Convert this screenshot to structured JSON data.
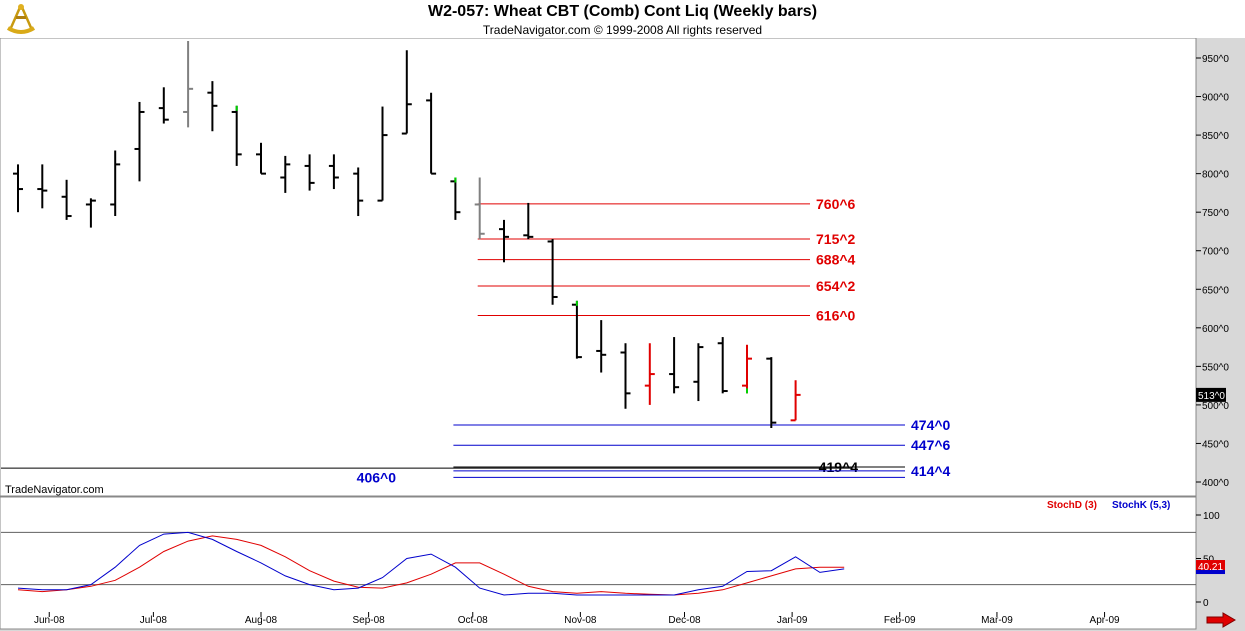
{
  "header": {
    "title": "W2-057:  Wheat CBT (Comb) Cont Liq  (Weekly bars)",
    "copyright": "TradeNavigator.com © 1999-2008 All rights reserved",
    "watermark": "TradeNavigator.com"
  },
  "chart_data": [
    {
      "type": "ohlc",
      "panel": "price",
      "y_ticks": [
        "950^0",
        "900^0",
        "850^0",
        "800^0",
        "750^0",
        "700^0",
        "650^0",
        "600^0",
        "550^0",
        "500^0",
        "450^0",
        "400^0"
      ],
      "y_tick_values": [
        950,
        900,
        850,
        800,
        750,
        700,
        650,
        600,
        550,
        500,
        450,
        400
      ],
      "ylim": [
        385,
        975
      ],
      "last_price_label": "513^0",
      "last_price": 513,
      "colors": {
        "up_down": "#000000",
        "early": "#000000",
        "gray": "#808080",
        "red": "#e00000",
        "green": "#00d000"
      },
      "bars": [
        {
          "date": "2008-05-23",
          "open": 800,
          "high": 812,
          "low": 750,
          "close": 780,
          "color": "black"
        },
        {
          "date": "2008-05-30",
          "open": 780,
          "high": 812,
          "low": 755,
          "close": 778,
          "color": "black"
        },
        {
          "date": "2008-06-06",
          "open": 770,
          "high": 792,
          "low": 740,
          "close": 745,
          "color": "black"
        },
        {
          "date": "2008-06-13",
          "open": 760,
          "high": 768,
          "low": 730,
          "close": 765,
          "color": "black"
        },
        {
          "date": "2008-06-20",
          "open": 760,
          "high": 830,
          "low": 745,
          "close": 812,
          "color": "black"
        },
        {
          "date": "2008-06-27",
          "open": 832,
          "high": 893,
          "low": 790,
          "close": 880,
          "color": "black"
        },
        {
          "date": "2008-07-04",
          "open": 885,
          "high": 912,
          "low": 865,
          "close": 870,
          "color": "black"
        },
        {
          "date": "2008-07-11",
          "open": 880,
          "high": 972,
          "low": 860,
          "close": 910,
          "color": "gray"
        },
        {
          "date": "2008-07-18",
          "open": 905,
          "high": 920,
          "low": 855,
          "close": 888,
          "color": "black"
        },
        {
          "date": "2008-07-25",
          "open": 880,
          "high": 888,
          "low": 810,
          "close": 825,
          "color": "black",
          "high_color": "green"
        },
        {
          "date": "2008-08-01",
          "open": 825,
          "high": 840,
          "low": 800,
          "close": 800,
          "color": "black"
        },
        {
          "date": "2008-08-08",
          "open": 795,
          "high": 823,
          "low": 775,
          "close": 812,
          "color": "black"
        },
        {
          "date": "2008-08-15",
          "open": 810,
          "high": 825,
          "low": 778,
          "close": 788,
          "color": "black"
        },
        {
          "date": "2008-08-22",
          "open": 810,
          "high": 825,
          "low": 780,
          "close": 795,
          "color": "black"
        },
        {
          "date": "2008-08-29",
          "open": 800,
          "high": 808,
          "low": 745,
          "close": 765,
          "color": "black"
        },
        {
          "date": "2008-09-05",
          "open": 765,
          "high": 887,
          "low": 765,
          "close": 850,
          "color": "black"
        },
        {
          "date": "2008-09-12",
          "open": 852,
          "high": 960,
          "low": 852,
          "close": 890,
          "color": "black"
        },
        {
          "date": "2008-09-19",
          "open": 895,
          "high": 905,
          "low": 800,
          "close": 800,
          "color": "black"
        },
        {
          "date": "2008-09-26",
          "open": 790,
          "high": 795,
          "low": 740,
          "close": 750,
          "color": "black",
          "high_color": "green"
        },
        {
          "date": "2008-10-03",
          "open": 760,
          "high": 795,
          "low": 715,
          "close": 722,
          "color": "gray"
        },
        {
          "date": "2008-10-10",
          "open": 728,
          "high": 740,
          "low": 685,
          "close": 718,
          "color": "black"
        },
        {
          "date": "2008-10-17",
          "open": 720,
          "high": 762,
          "low": 715,
          "close": 718,
          "color": "black"
        },
        {
          "date": "2008-10-24",
          "open": 712,
          "high": 715,
          "low": 630,
          "close": 640,
          "color": "black"
        },
        {
          "date": "2008-10-31",
          "open": 630,
          "high": 635,
          "low": 560,
          "close": 562,
          "color": "black",
          "high_color": "green"
        },
        {
          "date": "2008-11-07",
          "open": 570,
          "high": 610,
          "low": 542,
          "close": 565,
          "color": "black"
        },
        {
          "date": "2008-11-14",
          "open": 568,
          "high": 580,
          "low": 495,
          "close": 515,
          "color": "black"
        },
        {
          "date": "2008-11-21",
          "open": 525,
          "high": 580,
          "low": 500,
          "close": 540,
          "color": "red"
        },
        {
          "date": "2008-11-28",
          "open": 540,
          "high": 588,
          "low": 515,
          "close": 523,
          "color": "black"
        },
        {
          "date": "2008-12-05",
          "open": 530,
          "high": 580,
          "low": 505,
          "close": 575,
          "color": "black"
        },
        {
          "date": "2008-12-12",
          "open": 580,
          "high": 588,
          "low": 515,
          "close": 518,
          "color": "black"
        },
        {
          "date": "2008-12-19",
          "open": 525,
          "high": 578,
          "low": 515,
          "close": 560,
          "color": "red",
          "low_color": "green"
        },
        {
          "date": "2008-12-26",
          "open": 560,
          "high": 562,
          "low": 470,
          "close": 477,
          "color": "black"
        },
        {
          "date": "2009-01-02",
          "open": 480,
          "high": 532,
          "low": 480,
          "close": 513,
          "color": "red"
        }
      ],
      "levels": [
        {
          "label": "760^6",
          "value": 760.75,
          "color": "#e00000",
          "from": "2008-10-03"
        },
        {
          "label": "715^2",
          "value": 715.25,
          "color": "#e00000",
          "from": "2008-10-03"
        },
        {
          "label": "688^4",
          "value": 688.5,
          "color": "#e00000",
          "from": "2008-10-03"
        },
        {
          "label": "654^2",
          "value": 654.25,
          "color": "#e00000",
          "from": "2008-10-03"
        },
        {
          "label": "616^0",
          "value": 616,
          "color": "#e00000",
          "from": "2008-10-03"
        },
        {
          "label": "474^0",
          "value": 474,
          "color": "#0000cc",
          "from": "2008-09-26"
        },
        {
          "label": "447^6",
          "value": 447.75,
          "color": "#0000cc",
          "from": "2008-09-26"
        },
        {
          "label": "419^4",
          "value": 419.5,
          "color": "#000000",
          "from": "2008-09-26"
        },
        {
          "label": "414^4",
          "value": 414.5,
          "color": "#0000cc",
          "from": "2008-09-26"
        },
        {
          "label": "406^0",
          "value": 406,
          "color": "#0000cc",
          "from": "2008-09-26"
        }
      ],
      "support_line": {
        "value": 418,
        "color": "#000000",
        "from": "start"
      }
    },
    {
      "type": "line",
      "panel": "stochastic",
      "y_ticks": [
        "100",
        "50",
        "0"
      ],
      "y_tick_values": [
        100,
        50,
        0
      ],
      "ylim": [
        -8,
        115
      ],
      "reference_lines": [
        80,
        20
      ],
      "last_value_label": "40.21",
      "series": [
        {
          "name": "StochD (3)",
          "color": "#e00000",
          "values": [
            14,
            12,
            14,
            18,
            25,
            40,
            58,
            70,
            76,
            72,
            65,
            52,
            36,
            24,
            17,
            16,
            22,
            32,
            45,
            45,
            32,
            18,
            12,
            10,
            12,
            10,
            9,
            8,
            10,
            14,
            22,
            30,
            38,
            40,
            40
          ]
        },
        {
          "name": "StochK (5,3)",
          "color": "#0000cc",
          "values": [
            16,
            14,
            14,
            20,
            40,
            65,
            78,
            80,
            72,
            58,
            45,
            30,
            20,
            14,
            16,
            28,
            50,
            55,
            40,
            16,
            8,
            10,
            10,
            8,
            8,
            8,
            8,
            8,
            14,
            18,
            35,
            36,
            52,
            34,
            38
          ]
        }
      ]
    }
  ],
  "x_axis": {
    "labels": [
      "Jun-08",
      "Jul-08",
      "Aug-08",
      "Sep-08",
      "Oct-08",
      "Nov-08",
      "Dec-08",
      "Jan-09",
      "Feb-09",
      "Mar-09",
      "Apr-09"
    ],
    "dates": [
      "2008-06-01",
      "2008-07-01",
      "2008-08-01",
      "2008-09-01",
      "2008-10-01",
      "2008-11-01",
      "2008-12-01",
      "2009-01-01",
      "2009-02-01",
      "2009-03-01",
      "2009-04-01"
    ]
  }
}
